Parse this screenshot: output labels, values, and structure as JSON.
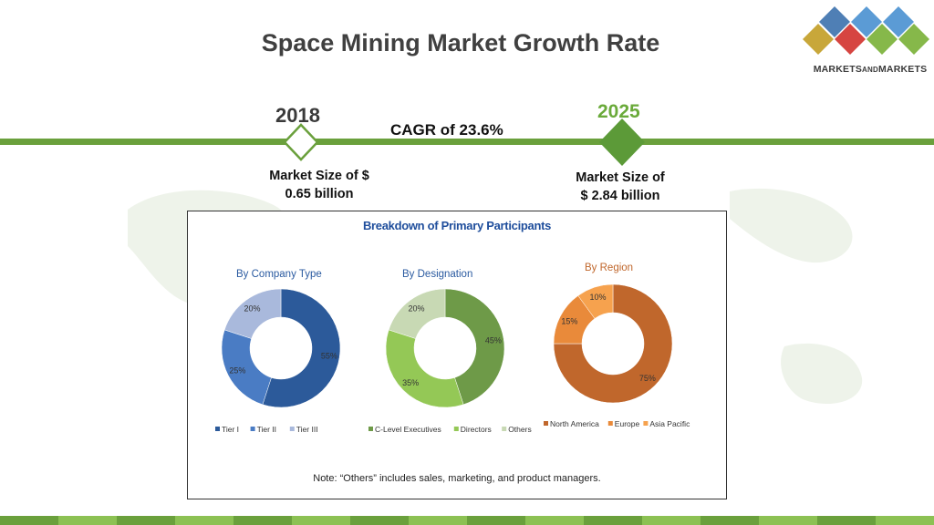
{
  "title": "Space Mining Market Growth Rate",
  "logo": {
    "text_main": "MARKETS",
    "text_small": "AND",
    "text_end": "MARKETS"
  },
  "timeline": {
    "year_start": "2018",
    "year_end": "2025",
    "cagr": "CAGR of 23.6%",
    "size_start_line1": "Market Size of $",
    "size_start_line2": "0.65 billion",
    "size_end_line1": "Market Size of",
    "size_end_line2": "$ 2.84 billion"
  },
  "panel": {
    "title": "Breakdown of Primary Participants",
    "note": "Note: “Others” includes sales, marketing, and product managers."
  },
  "colors": {
    "line_green": "#6aa03c",
    "tier1": "#2c5a9a",
    "tier2": "#4a7cc4",
    "tier3": "#a9b9dc",
    "clevel": "#6e9a48",
    "directors": "#94c856",
    "others": "#c8d9b4",
    "north_america": "#c0672c",
    "europe": "#e98a3a",
    "asia_pacific": "#f6a24e"
  },
  "chart_data": [
    {
      "type": "pie",
      "title": "By Company Type",
      "categories": [
        "Tier I",
        "Tier II",
        "Tier III"
      ],
      "values": [
        55,
        25,
        20
      ],
      "labels": [
        "55%",
        "25%",
        "20%"
      ],
      "legend": "bottom"
    },
    {
      "type": "pie",
      "title": "By Designation",
      "categories": [
        "C-Level Executives",
        "Directors",
        "Others"
      ],
      "values": [
        45,
        35,
        20
      ],
      "labels": [
        "45%",
        "35%",
        "20%"
      ],
      "legend": "bottom"
    },
    {
      "type": "pie",
      "title": "By Region",
      "categories": [
        "North America",
        "Europe",
        "Asia Pacific"
      ],
      "values": [
        75,
        15,
        10
      ],
      "labels": [
        "75%",
        "15%",
        "10%"
      ],
      "legend": "bottom"
    }
  ]
}
